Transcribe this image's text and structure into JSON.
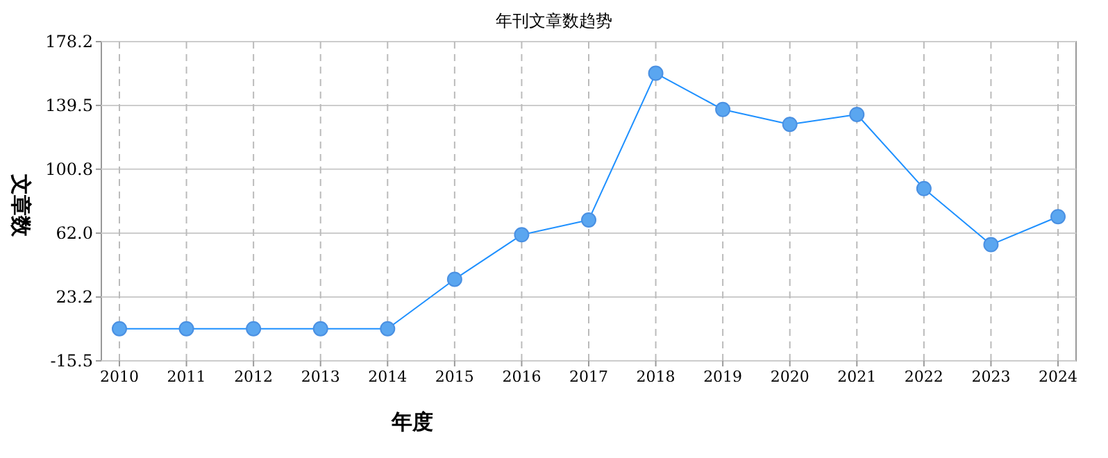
{
  "chart_data": {
    "type": "line",
    "title": "年刊文章数趋势",
    "xlabel": "年度",
    "ylabel": "文章数",
    "categories": [
      "2010",
      "2011",
      "2012",
      "2013",
      "2014",
      "2015",
      "2016",
      "2017",
      "2018",
      "2019",
      "2020",
      "2021",
      "2022",
      "2023",
      "2024"
    ],
    "series": [
      {
        "color": "#1e90ff",
        "values": [
          4,
          4,
          4,
          4,
          4,
          34,
          61,
          70,
          159,
          137,
          128,
          134,
          89,
          55,
          72
        ]
      }
    ],
    "ylim": [
      -15.5,
      178.2
    ],
    "yticks": [
      -15.5,
      23.2,
      {
        "value": 62,
        "label": "62.0"
      },
      100.8,
      139.5,
      178.2
    ],
    "grid": true,
    "marker": "circle",
    "line_style": "solid"
  }
}
